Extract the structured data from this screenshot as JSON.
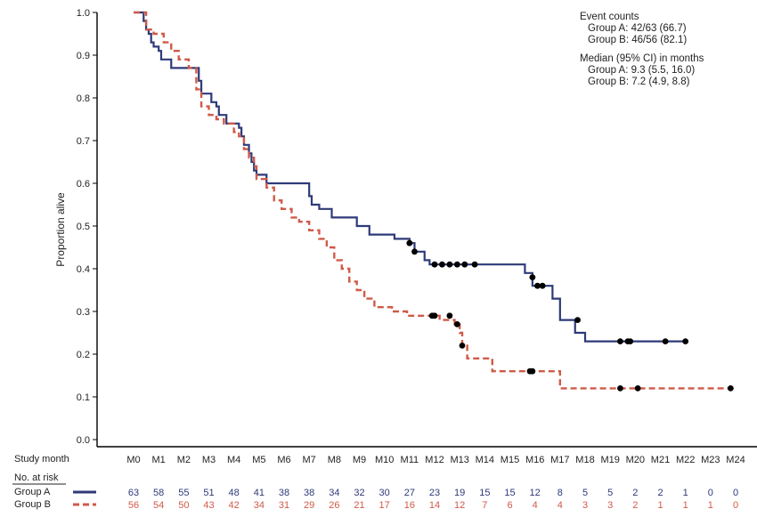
{
  "chart_data": {
    "type": "line",
    "subtype": "kaplan-meier",
    "ylabel": "Proportion alive",
    "xlabel": "Study month",
    "ylim": [
      0,
      1
    ],
    "yticks": [
      "0.0",
      "0.1",
      "0.2",
      "0.3",
      "0.4",
      "0.5",
      "0.6",
      "0.7",
      "0.8",
      "0.9",
      "1.0"
    ],
    "xlim": [
      0,
      24
    ],
    "categories": [
      "M0",
      "M1",
      "M2",
      "M3",
      "M4",
      "M5",
      "M6",
      "M7",
      "M8",
      "M9",
      "M10",
      "M11",
      "M12",
      "M13",
      "M14",
      "M15",
      "M16",
      "M17",
      "M18",
      "M19",
      "M20",
      "M21",
      "M22",
      "M23",
      "M24"
    ],
    "annotations": {
      "event_counts_title": "Event counts",
      "event_a": "Group A: 42/63 (66.7)",
      "event_b": "Group B: 46/56 (82.1)",
      "median_title": "Median (95% CI) in months",
      "median_a": "Group A: 9.3 (5.5, 16.0)",
      "median_b": "Group B: 7.2 (4.9, 8.8)"
    },
    "series": [
      {
        "name": "Group A",
        "color": "#2e3a78",
        "dash": "solid",
        "steps": [
          [
            0,
            1.0
          ],
          [
            0.4,
            0.98
          ],
          [
            0.5,
            0.96
          ],
          [
            0.6,
            0.95
          ],
          [
            0.7,
            0.93
          ],
          [
            0.8,
            0.92
          ],
          [
            1.0,
            0.91
          ],
          [
            1.1,
            0.89
          ],
          [
            1.5,
            0.87
          ],
          [
            2.6,
            0.84
          ],
          [
            2.7,
            0.81
          ],
          [
            3.1,
            0.79
          ],
          [
            3.3,
            0.78
          ],
          [
            3.4,
            0.76
          ],
          [
            3.7,
            0.74
          ],
          [
            4.2,
            0.73
          ],
          [
            4.3,
            0.71
          ],
          [
            4.4,
            0.69
          ],
          [
            4.6,
            0.67
          ],
          [
            4.7,
            0.65
          ],
          [
            4.8,
            0.63
          ],
          [
            4.9,
            0.62
          ],
          [
            5.3,
            0.6
          ],
          [
            7.0,
            0.57
          ],
          [
            7.1,
            0.55
          ],
          [
            7.4,
            0.54
          ],
          [
            7.9,
            0.52
          ],
          [
            8.9,
            0.5
          ],
          [
            9.4,
            0.48
          ],
          [
            10.4,
            0.47
          ],
          [
            11.0,
            0.46
          ],
          [
            11.2,
            0.44
          ],
          [
            11.6,
            0.42
          ],
          [
            11.8,
            0.41
          ],
          [
            15.6,
            0.39
          ],
          [
            15.9,
            0.36
          ],
          [
            16.7,
            0.33
          ],
          [
            17.0,
            0.28
          ],
          [
            17.6,
            0.25
          ],
          [
            18.0,
            0.23
          ],
          [
            22.0,
            0.23
          ]
        ],
        "censored": [
          [
            11.0,
            0.46
          ],
          [
            11.2,
            0.44
          ],
          [
            12.0,
            0.41
          ],
          [
            12.3,
            0.41
          ],
          [
            12.6,
            0.41
          ],
          [
            12.9,
            0.41
          ],
          [
            13.2,
            0.41
          ],
          [
            13.6,
            0.41
          ],
          [
            15.9,
            0.38
          ],
          [
            16.1,
            0.36
          ],
          [
            16.3,
            0.36
          ],
          [
            17.7,
            0.28
          ],
          [
            19.4,
            0.23
          ],
          [
            19.7,
            0.23
          ],
          [
            19.8,
            0.23
          ],
          [
            21.2,
            0.23
          ],
          [
            22.0,
            0.23
          ]
        ]
      },
      {
        "name": "Group B",
        "color": "#d05a48",
        "dash": "dashed",
        "steps": [
          [
            0,
            1.0
          ],
          [
            0.5,
            0.96
          ],
          [
            0.8,
            0.95
          ],
          [
            1.2,
            0.93
          ],
          [
            1.5,
            0.91
          ],
          [
            1.8,
            0.89
          ],
          [
            2.2,
            0.87
          ],
          [
            2.5,
            0.82
          ],
          [
            2.7,
            0.78
          ],
          [
            3.0,
            0.76
          ],
          [
            3.3,
            0.75
          ],
          [
            3.6,
            0.74
          ],
          [
            4.0,
            0.72
          ],
          [
            4.2,
            0.71
          ],
          [
            4.4,
            0.68
          ],
          [
            4.6,
            0.66
          ],
          [
            4.8,
            0.64
          ],
          [
            4.9,
            0.61
          ],
          [
            5.3,
            0.59
          ],
          [
            5.6,
            0.56
          ],
          [
            5.9,
            0.54
          ],
          [
            6.3,
            0.52
          ],
          [
            6.6,
            0.51
          ],
          [
            7.0,
            0.49
          ],
          [
            7.4,
            0.47
          ],
          [
            7.7,
            0.45
          ],
          [
            8.0,
            0.42
          ],
          [
            8.3,
            0.4
          ],
          [
            8.6,
            0.37
          ],
          [
            8.9,
            0.35
          ],
          [
            9.2,
            0.33
          ],
          [
            9.6,
            0.31
          ],
          [
            10.3,
            0.3
          ],
          [
            10.9,
            0.29
          ],
          [
            12.2,
            0.28
          ],
          [
            12.8,
            0.27
          ],
          [
            13.0,
            0.25
          ],
          [
            13.1,
            0.22
          ],
          [
            13.3,
            0.19
          ],
          [
            14.3,
            0.16
          ],
          [
            16.5,
            0.16
          ],
          [
            17.0,
            0.12
          ],
          [
            24.0,
            0.12
          ]
        ],
        "censored": [
          [
            11.9,
            0.29
          ],
          [
            12.0,
            0.29
          ],
          [
            12.6,
            0.29
          ],
          [
            12.9,
            0.27
          ],
          [
            13.1,
            0.22
          ],
          [
            15.8,
            0.16
          ],
          [
            15.9,
            0.16
          ],
          [
            19.4,
            0.12
          ],
          [
            20.1,
            0.12
          ],
          [
            23.8,
            0.12
          ]
        ]
      }
    ],
    "risk_table": {
      "header": "No. at risk",
      "rows": [
        {
          "label": "Group A",
          "color": "#2e3a78",
          "values": [
            "63",
            "58",
            "55",
            "51",
            "48",
            "41",
            "38",
            "38",
            "34",
            "32",
            "30",
            "27",
            "23",
            "19",
            "15",
            "15",
            "12",
            "8",
            "5",
            "5",
            "2",
            "2",
            "1",
            "0",
            "0"
          ]
        },
        {
          "label": "Group B",
          "color": "#d05a48",
          "values": [
            "56",
            "54",
            "50",
            "43",
            "42",
            "34",
            "31",
            "29",
            "26",
            "21",
            "17",
            "16",
            "14",
            "12",
            "7",
            "6",
            "4",
            "4",
            "3",
            "3",
            "2",
            "1",
            "1",
            "1",
            "0"
          ]
        }
      ]
    }
  }
}
